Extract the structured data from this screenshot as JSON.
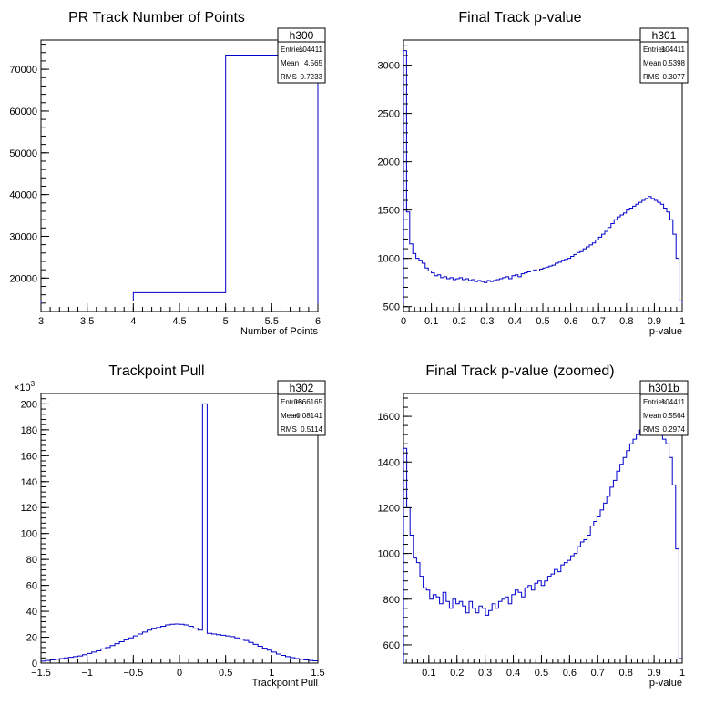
{
  "chart_data": [
    {
      "type": "histogram",
      "hist_name": "h300",
      "title": "PR Track Number of Points",
      "xlabel": "Number of Points",
      "ylabel": "",
      "xlim": [
        3,
        6
      ],
      "ylim": [
        12000,
        77000
      ],
      "x_ticks": [
        {
          "v": 3,
          "label": "3"
        },
        {
          "v": 3.5,
          "label": "3.5"
        },
        {
          "v": 4,
          "label": "4"
        },
        {
          "v": 4.5,
          "label": "4.5"
        },
        {
          "v": 5,
          "label": "5"
        },
        {
          "v": 5.5,
          "label": "5.5"
        },
        {
          "v": 6,
          "label": "6"
        }
      ],
      "y_ticks": [
        {
          "v": 20000,
          "label": "20000"
        },
        {
          "v": 30000,
          "label": "30000"
        },
        {
          "v": 40000,
          "label": "40000"
        },
        {
          "v": 50000,
          "label": "50000"
        },
        {
          "v": 60000,
          "label": "60000"
        },
        {
          "v": 70000,
          "label": "70000"
        }
      ],
      "y_exponent": "",
      "bin_edges": [
        3,
        4,
        5,
        6
      ],
      "values": [
        14500,
        16500,
        73400
      ],
      "stats": [
        {
          "label": "Entries",
          "value": "104411"
        },
        {
          "label": "Mean",
          "value": "4.565"
        },
        {
          "label": "RMS",
          "value": "0.7233"
        }
      ]
    },
    {
      "type": "histogram",
      "hist_name": "h301",
      "title": "Final Track p-value",
      "xlabel": "p-value",
      "ylabel": "",
      "xlim": [
        0,
        1
      ],
      "ylim": [
        450,
        3260
      ],
      "x_ticks": [
        {
          "v": 0,
          "label": "0"
        },
        {
          "v": 0.1,
          "label": "0.1"
        },
        {
          "v": 0.2,
          "label": "0.2"
        },
        {
          "v": 0.3,
          "label": "0.3"
        },
        {
          "v": 0.4,
          "label": "0.4"
        },
        {
          "v": 0.5,
          "label": "0.5"
        },
        {
          "v": 0.6,
          "label": "0.6"
        },
        {
          "v": 0.7,
          "label": "0.7"
        },
        {
          "v": 0.8,
          "label": "0.8"
        },
        {
          "v": 0.9,
          "label": "0.9"
        },
        {
          "v": 1,
          "label": "1"
        }
      ],
      "y_ticks": [
        {
          "v": 500,
          "label": "500"
        },
        {
          "v": 1000,
          "label": "1000"
        },
        {
          "v": 1500,
          "label": "1500"
        },
        {
          "v": 2000,
          "label": "2000"
        },
        {
          "v": 2500,
          "label": "2500"
        },
        {
          "v": 3000,
          "label": "3000"
        }
      ],
      "y_exponent": "",
      "bin_edges_range": [
        0,
        1
      ],
      "values": [
        3150,
        1480,
        1150,
        1050,
        1000,
        980,
        950,
        900,
        870,
        850,
        820,
        830,
        800,
        810,
        790,
        800,
        780,
        790,
        800,
        780,
        790,
        770,
        780,
        760,
        770,
        760,
        750,
        770,
        760,
        770,
        780,
        790,
        800,
        810,
        790,
        820,
        830,
        810,
        840,
        850,
        860,
        870,
        880,
        870,
        890,
        900,
        910,
        920,
        930,
        950,
        960,
        980,
        990,
        1000,
        1020,
        1040,
        1060,
        1070,
        1100,
        1120,
        1140,
        1160,
        1190,
        1220,
        1250,
        1280,
        1320,
        1360,
        1400,
        1430,
        1450,
        1470,
        1500,
        1520,
        1540,
        1560,
        1580,
        1600,
        1620,
        1640,
        1620,
        1600,
        1580,
        1560,
        1520,
        1480,
        1400,
        1250,
        1000,
        560
      ]
    },
    {
      "type": "histogram",
      "hist_name": "h302",
      "title": "Trackpoint Pull",
      "xlabel": "Trackpoint Pull",
      "ylabel": "",
      "xlim": [
        -1.5,
        1.5
      ],
      "ylim": [
        0,
        208
      ],
      "x_ticks": [
        {
          "v": -1.5,
          "label": "−1.5"
        },
        {
          "v": -1,
          "label": "−1"
        },
        {
          "v": -0.5,
          "label": "−0.5"
        },
        {
          "v": 0,
          "label": "0"
        },
        {
          "v": 0.5,
          "label": "0.5"
        },
        {
          "v": 1,
          "label": "1"
        },
        {
          "v": 1.5,
          "label": "1.5"
        }
      ],
      "y_ticks": [
        {
          "v": 0,
          "label": "0"
        },
        {
          "v": 20,
          "label": "20"
        },
        {
          "v": 40,
          "label": "40"
        },
        {
          "v": 60,
          "label": "60"
        },
        {
          "v": 80,
          "label": "80"
        },
        {
          "v": 100,
          "label": "100"
        },
        {
          "v": 120,
          "label": "120"
        },
        {
          "v": 140,
          "label": "140"
        },
        {
          "v": 160,
          "label": "160"
        },
        {
          "v": 180,
          "label": "180"
        },
        {
          "v": 200,
          "label": "200"
        }
      ],
      "y_exponent": "×10",
      "y_exponent_power": "3",
      "bin_edges_range": [
        -1.5,
        1.5
      ],
      "values": [
        1.5,
        2,
        2.5,
        3,
        3.5,
        4,
        4.5,
        5,
        5.5,
        6.5,
        7.5,
        8.5,
        9.5,
        11,
        12,
        13.5,
        15,
        16.5,
        18,
        19.5,
        21,
        22.5,
        24,
        25.5,
        26.5,
        27.5,
        28.5,
        29.5,
        30,
        30.2,
        30,
        29.5,
        28.5,
        27,
        25.5,
        200,
        23,
        22.5,
        22,
        21.5,
        21,
        20.5,
        19.5,
        18.5,
        17.5,
        16,
        14.5,
        13,
        11.5,
        10,
        8.5,
        7,
        6,
        5,
        4.2,
        3.5,
        3,
        2.5,
        2,
        1.8
      ],
      "stats": [
        {
          "label": "Entries",
          "value": "1566165"
        },
        {
          "label": "Mean",
          "value": "−0.08141"
        },
        {
          "label": "RMS",
          "value": "0.5114"
        }
      ]
    },
    {
      "type": "histogram",
      "hist_name": "h301b",
      "title": "Final Track p-value (zoomed)",
      "xlabel": "p-value",
      "ylabel": "",
      "xlim": [
        0.01,
        1
      ],
      "ylim": [
        520,
        1700
      ],
      "x_ticks": [
        {
          "v": 0.1,
          "label": "0.1"
        },
        {
          "v": 0.2,
          "label": "0.2"
        },
        {
          "v": 0.3,
          "label": "0.3"
        },
        {
          "v": 0.4,
          "label": "0.4"
        },
        {
          "v": 0.5,
          "label": "0.5"
        },
        {
          "v": 0.6,
          "label": "0.6"
        },
        {
          "v": 0.7,
          "label": "0.7"
        },
        {
          "v": 0.8,
          "label": "0.8"
        },
        {
          "v": 0.9,
          "label": "0.9"
        },
        {
          "v": 1,
          "label": "1"
        }
      ],
      "y_ticks": [
        {
          "v": 600,
          "label": "600"
        },
        {
          "v": 800,
          "label": "800"
        },
        {
          "v": 1000,
          "label": "1000"
        },
        {
          "v": 1200,
          "label": "1200"
        },
        {
          "v": 1400,
          "label": "1400"
        },
        {
          "v": 1600,
          "label": "1600"
        }
      ],
      "y_exponent": "",
      "bin_edges_range": [
        0.01,
        1
      ],
      "values": [
        1460,
        1200,
        1080,
        980,
        960,
        900,
        850,
        840,
        800,
        820,
        810,
        780,
        830,
        790,
        760,
        800,
        780,
        790,
        770,
        740,
        790,
        760,
        740,
        770,
        760,
        730,
        750,
        780,
        760,
        790,
        800,
        810,
        780,
        820,
        840,
        830,
        810,
        850,
        860,
        840,
        870,
        880,
        860,
        880,
        900,
        910,
        930,
        920,
        950,
        960,
        970,
        990,
        1000,
        1030,
        1050,
        1060,
        1080,
        1120,
        1140,
        1160,
        1190,
        1220,
        1250,
        1290,
        1320,
        1360,
        1390,
        1420,
        1450,
        1480,
        1500,
        1520,
        1540,
        1560,
        1580,
        1600,
        1590,
        1560,
        1520,
        1500,
        1480,
        1420,
        1300,
        1020,
        540
      ],
      "stats": [
        {
          "label": "Entries",
          "value": "104411"
        },
        {
          "label": "Mean",
          "value": "0.5564"
        },
        {
          "label": "RMS",
          "value": "0.2974"
        }
      ]
    }
  ],
  "panel1_stats": [
    {
      "label": "Entries",
      "value": "104411"
    },
    {
      "label": "Mean",
      "value": "0.5398"
    },
    {
      "label": "RMS",
      "value": "0.3077"
    }
  ],
  "colors": {
    "line": "#0000cc",
    "axis": "#000000",
    "background": "#ffffff"
  }
}
